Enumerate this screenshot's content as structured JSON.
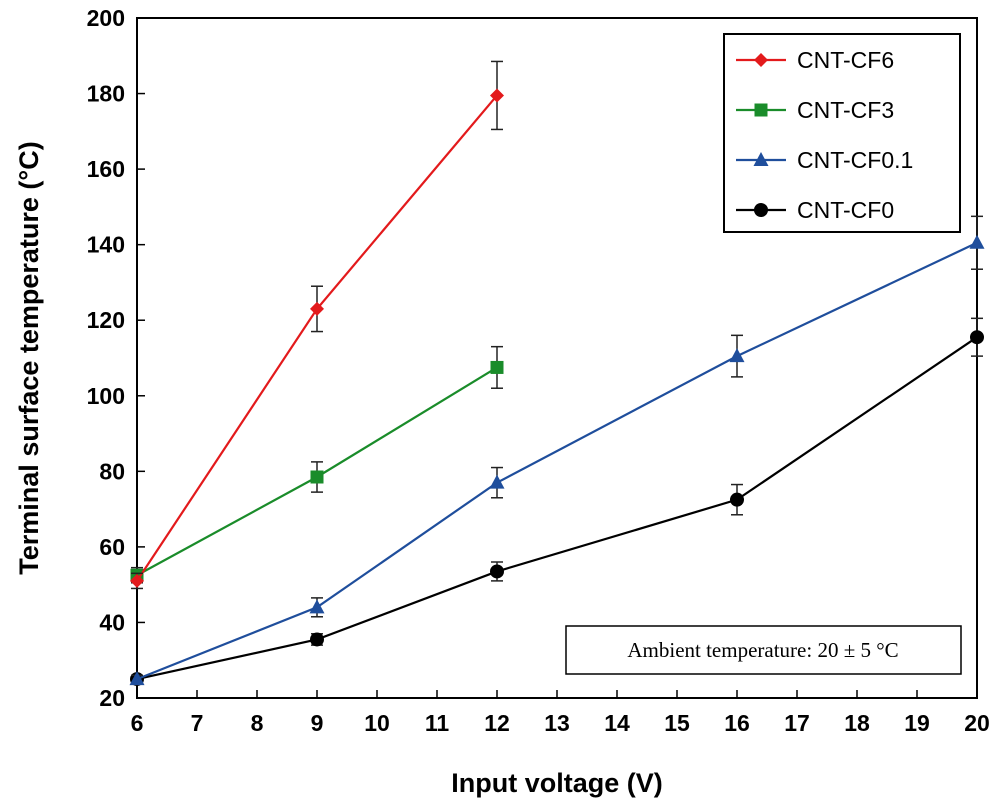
{
  "chart_data": {
    "type": "line",
    "xlabel": "Input voltage (V)",
    "ylabel": "Terminal surface temperature (°C)",
    "xlim": [
      6,
      20
    ],
    "ylim": [
      20,
      200
    ],
    "x_ticks": [
      "6",
      "7",
      "8",
      "9",
      "10",
      "11",
      "12",
      "13",
      "14",
      "15",
      "16",
      "17",
      "18",
      "19",
      "20"
    ],
    "y_ticks": [
      "20",
      "40",
      "60",
      "80",
      "100",
      "120",
      "140",
      "160",
      "180",
      "200"
    ],
    "grid": false,
    "legend_position": "top-right",
    "annotation": "Ambient temperature: 20 ± 5 °C",
    "series": [
      {
        "name": "CNT-CF6",
        "color": "#e31a1c",
        "marker": "diamond",
        "x": [
          6,
          9,
          12
        ],
        "y": [
          51,
          123,
          179.5
        ],
        "err": [
          2,
          6,
          9
        ]
      },
      {
        "name": "CNT-CF3",
        "color": "#1a8c2a",
        "marker": "square",
        "x": [
          6,
          9,
          12
        ],
        "y": [
          52.5,
          78.5,
          107.5
        ],
        "err": [
          2,
          4,
          5.5
        ]
      },
      {
        "name": "CNT-CF0.1",
        "color": "#1f4e9c",
        "marker": "triangle",
        "x": [
          6,
          9,
          12,
          16,
          20
        ],
        "y": [
          25,
          44,
          77,
          110.5,
          140.5
        ],
        "err": [
          1,
          2.5,
          4,
          5.5,
          7
        ]
      },
      {
        "name": "CNT-CF0",
        "color": "#000000",
        "marker": "circle",
        "x": [
          6,
          9,
          12,
          16,
          20
        ],
        "y": [
          25,
          35.5,
          53.5,
          72.5,
          115.5
        ],
        "err": [
          1,
          1.5,
          2.5,
          4,
          5
        ]
      }
    ]
  }
}
